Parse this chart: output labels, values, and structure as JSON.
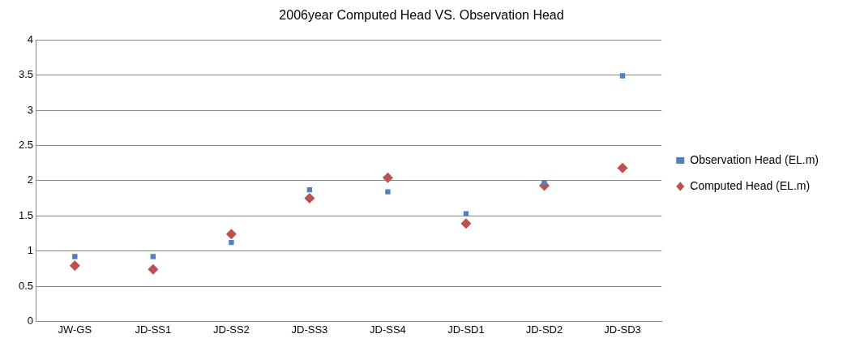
{
  "chart_data": {
    "type": "scatter",
    "title": "2006year Computed Head VS. Observation Head",
    "categories": [
      "JW-GS",
      "JD-SS1",
      "JD-SS2",
      "JD-SS3",
      "JD-SS4",
      "JD-SD1",
      "JD-SD2",
      "JD-SD3"
    ],
    "series": [
      {
        "name": "Observation Head (EL.m)",
        "color": "#4f81bd",
        "marker": "square",
        "values": [
          0.92,
          0.92,
          1.12,
          1.87,
          1.84,
          1.53,
          1.97,
          3.49
        ]
      },
      {
        "name": "Computed Head (EL.m)",
        "color": "#c0504d",
        "marker": "diamond",
        "values": [
          0.79,
          0.74,
          1.24,
          1.75,
          2.04,
          1.39,
          1.93,
          2.18
        ]
      }
    ],
    "ylim": [
      0,
      4
    ],
    "yticks": [
      0,
      0.5,
      1,
      1.5,
      2,
      2.5,
      3,
      3.5,
      4
    ],
    "grid": "y",
    "legend": "right"
  }
}
